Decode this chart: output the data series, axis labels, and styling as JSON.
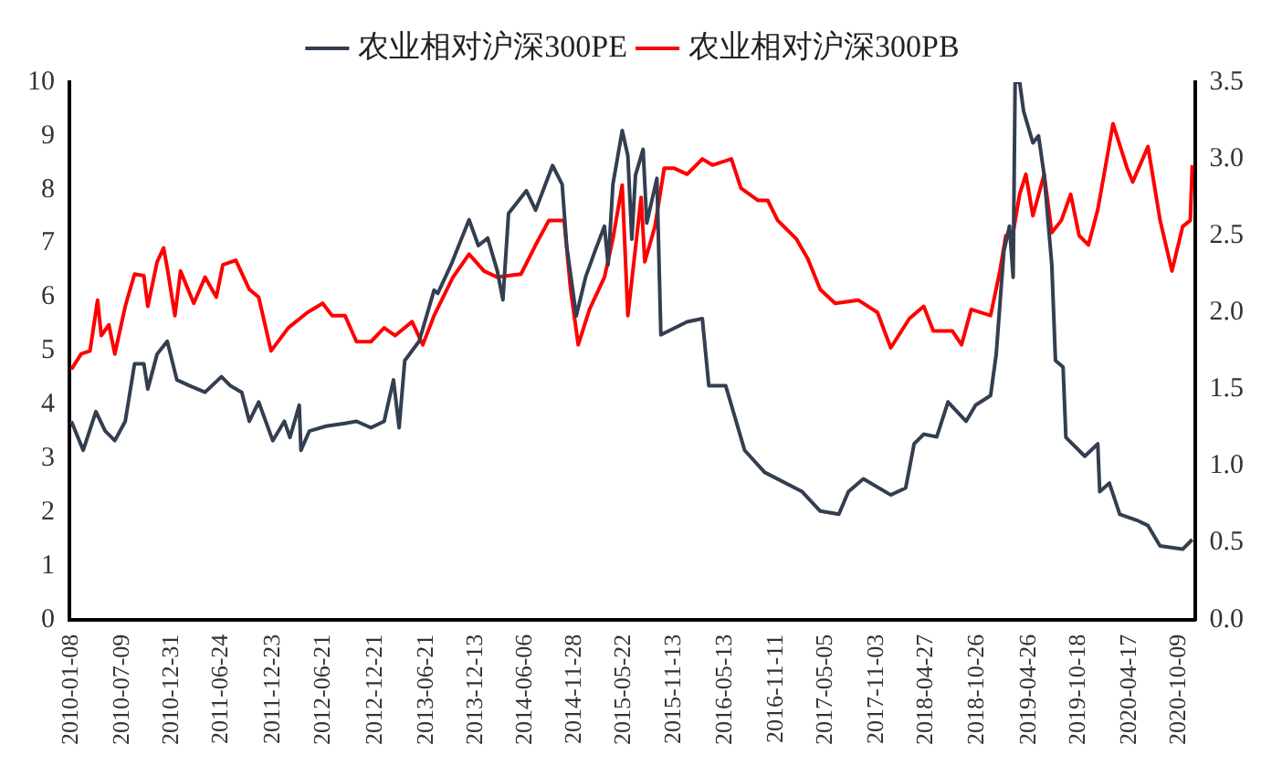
{
  "chart_data": {
    "type": "line",
    "xlim": [
      "2010-01-01",
      "2020-12-04"
    ],
    "xticks": [
      "2010-01-08",
      "2010-07-09",
      "2010-12-31",
      "2011-06-24",
      "2011-12-23",
      "2012-06-21",
      "2012-12-21",
      "2013-06-21",
      "2013-12-13",
      "2014-06-06",
      "2014-11-28",
      "2015-05-22",
      "2015-11-13",
      "2016-05-13",
      "2016-11-11",
      "2017-05-05",
      "2017-11-03",
      "2018-04-27",
      "2018-10-26",
      "2019-04-26",
      "2019-10-18",
      "2020-04-17",
      "2020-10-09"
    ],
    "ylim": [
      0,
      10
    ],
    "yticks": [
      0,
      1,
      2,
      3,
      4,
      5,
      6,
      7,
      8,
      9,
      10
    ],
    "y2lim": [
      0,
      3.5
    ],
    "y2ticks": [
      {
        "value": 0,
        "label": "0.0"
      },
      0.5,
      {
        "value": 1,
        "label": "1.0"
      },
      1.5,
      {
        "value": 2,
        "label": "2.0"
      },
      2.5,
      {
        "value": 3,
        "label": "3.0"
      },
      3.5
    ],
    "grid": false,
    "legend": "top",
    "line_style": "solid",
    "marker": "none",
    "series": [
      {
        "name": "农业相对沪深300PE",
        "color": "#333f50",
        "x": [
          "2010-01-08",
          "2010-02-19",
          "2010-04-05",
          "2010-05-08",
          "2010-06-11",
          "2010-07-18",
          "2010-08-20",
          "2010-09-22",
          "2010-10-06",
          "2010-11-08",
          "2010-12-14",
          "2011-01-17",
          "2011-03-04",
          "2011-04-27",
          "2011-06-24",
          "2011-07-26",
          "2011-09-04",
          "2011-10-01",
          "2011-11-03",
          "2011-12-23",
          "2012-02-02",
          "2012-02-22",
          "2012-03-26",
          "2012-04-01",
          "2012-05-01",
          "2012-06-30",
          "2012-09-04",
          "2012-10-15",
          "2012-12-05",
          "2013-01-21",
          "2013-02-23",
          "2013-03-15",
          "2013-04-04",
          "2013-05-25",
          "2013-07-17",
          "2013-07-30",
          "2013-09-15",
          "2013-11-18",
          "2013-12-21",
          "2014-01-23",
          "2014-02-26",
          "2014-03-18",
          "2014-04-07",
          "2014-06-09",
          "2014-07-12",
          "2014-09-10",
          "2014-10-14",
          "2014-10-30",
          "2014-12-03",
          "2015-01-05",
          "2015-02-07",
          "2015-03-13",
          "2015-03-26",
          "2015-04-12",
          "2015-05-15",
          "2015-06-04",
          "2015-06-18",
          "2015-07-01",
          "2015-07-28",
          "2015-08-10",
          "2015-09-15",
          "2015-09-29",
          "2015-12-31",
          "2016-02-23",
          "2016-03-17",
          "2016-05-16",
          "2016-07-22",
          "2016-10-01",
          "2017-02-11",
          "2017-04-16",
          "2017-06-21",
          "2017-07-25",
          "2017-09-16",
          "2017-12-22",
          "2018-02-13",
          "2018-03-15",
          "2018-04-18",
          "2018-06-03",
          "2018-07-13",
          "2018-09-15",
          "2018-10-19",
          "2018-12-11",
          "2018-12-31",
          "2019-01-27",
          "2019-02-16",
          "2019-03-01",
          "2019-03-08",
          "2019-03-24",
          "2019-04-07",
          "2019-05-10",
          "2019-05-30",
          "2019-06-19",
          "2019-07-16",
          "2019-07-29",
          "2019-08-25",
          "2019-09-04",
          "2019-11-10",
          "2019-12-26",
          "2020-01-02",
          "2020-02-05",
          "2020-03-13",
          "2020-05-12",
          "2020-06-21",
          "2020-08-03",
          "2020-10-22",
          "2020-11-25"
        ],
        "values": [
          3.69,
          3.15,
          3.87,
          3.51,
          3.33,
          3.69,
          4.76,
          4.76,
          4.29,
          4.94,
          5.18,
          4.46,
          4.35,
          4.23,
          4.52,
          4.35,
          4.23,
          3.69,
          4.05,
          3.33,
          3.69,
          3.39,
          3.99,
          3.15,
          3.51,
          3.6,
          3.65,
          3.69,
          3.57,
          3.69,
          4.46,
          3.57,
          4.82,
          5.18,
          6.13,
          6.07,
          6.6,
          7.44,
          6.96,
          7.1,
          6.49,
          5.95,
          7.56,
          7.98,
          7.62,
          8.45,
          8.1,
          6.96,
          5.65,
          6.37,
          6.85,
          7.32,
          6.6,
          8.1,
          9.1,
          8.63,
          7.08,
          8.27,
          8.75,
          7.38,
          8.21,
          5.3,
          5.54,
          5.6,
          4.35,
          4.35,
          3.15,
          2.74,
          2.38,
          2.02,
          1.96,
          2.38,
          2.62,
          2.32,
          2.45,
          3.27,
          3.45,
          3.4,
          4.05,
          3.69,
          3.99,
          4.17,
          4.94,
          6.85,
          7.32,
          6.37,
          10,
          10,
          9.46,
          8.87,
          9.0,
          8.27,
          6.6,
          4.82,
          4.7,
          3.39,
          3.04,
          3.27,
          2.38,
          2.54,
          1.96,
          1.85,
          1.75,
          1.37,
          1.31,
          1.49
        ]
      },
      {
        "name": "农业相对沪深300PB",
        "color": "#ff0000",
        "axis": "y2",
        "x": [
          "2010-01-08",
          "2010-02-12",
          "2010-03-15",
          "2010-04-11",
          "2010-04-24",
          "2010-05-21",
          "2010-06-11",
          "2010-07-18",
          "2010-08-20",
          "2010-09-22",
          "2010-10-06",
          "2010-11-08",
          "2010-12-01",
          "2010-12-14",
          "2011-01-10",
          "2011-01-30",
          "2011-03-18",
          "2011-04-27",
          "2011-06-06",
          "2011-06-29",
          "2011-08-14",
          "2011-10-01",
          "2011-11-03",
          "2011-12-17",
          "2012-02-16",
          "2012-04-24",
          "2012-06-17",
          "2012-07-20",
          "2012-09-04",
          "2012-10-15",
          "2012-12-05",
          "2013-01-21",
          "2013-03-01",
          "2013-04-30",
          "2013-06-07",
          "2013-07-17",
          "2013-09-22",
          "2013-11-18",
          "2014-01-10",
          "2014-02-26",
          "2014-05-21",
          "2014-07-12",
          "2014-08-28",
          "2014-10-21",
          "2014-11-13",
          "2014-12-10",
          "2015-01-19",
          "2015-03-13",
          "2015-04-12",
          "2015-05-15",
          "2015-06-04",
          "2015-07-21",
          "2015-08-03",
          "2015-09-08",
          "2015-10-11",
          "2015-11-14",
          "2015-12-31",
          "2016-02-23",
          "2016-03-30",
          "2016-06-05",
          "2016-07-09",
          "2016-09-08",
          "2016-10-12",
          "2016-11-16",
          "2017-01-21",
          "2017-03-03",
          "2017-04-16",
          "2017-06-08",
          "2017-08-30",
          "2017-11-05",
          "2017-12-22",
          "2018-02-26",
          "2018-04-18",
          "2018-05-22",
          "2018-07-28",
          "2018-08-30",
          "2018-10-03",
          "2018-12-11",
          "2019-01-13",
          "2019-02-03",
          "2019-03-01",
          "2019-03-24",
          "2019-04-15",
          "2019-05-10",
          "2019-06-19",
          "2019-07-16",
          "2019-08-19",
          "2019-09-21",
          "2019-10-21",
          "2019-11-23",
          "2019-12-26",
          "2020-01-29",
          "2020-02-18",
          "2020-04-08",
          "2020-04-28",
          "2020-06-21",
          "2020-08-03",
          "2020-09-14",
          "2020-10-22",
          "2020-11-18",
          "2020-11-25"
        ],
        "values": [
          1.63,
          1.73,
          1.75,
          2.08,
          1.85,
          1.92,
          1.73,
          2.04,
          2.25,
          2.24,
          2.04,
          2.33,
          2.42,
          2.29,
          1.98,
          2.27,
          2.06,
          2.23,
          2.1,
          2.31,
          2.34,
          2.15,
          2.1,
          1.75,
          1.9,
          2.0,
          2.06,
          1.98,
          1.98,
          1.81,
          1.81,
          1.9,
          1.85,
          1.94,
          1.79,
          1.98,
          2.23,
          2.38,
          2.27,
          2.23,
          2.25,
          2.44,
          2.6,
          2.6,
          2.15,
          1.79,
          2.02,
          2.23,
          2.48,
          2.83,
          1.98,
          2.75,
          2.33,
          2.56,
          2.94,
          2.94,
          2.9,
          3.0,
          2.96,
          3.0,
          2.81,
          2.73,
          2.73,
          2.6,
          2.48,
          2.35,
          2.15,
          2.06,
          2.08,
          2.0,
          1.77,
          1.96,
          2.04,
          1.88,
          1.88,
          1.79,
          2.02,
          1.98,
          2.27,
          2.5,
          2.52,
          2.77,
          2.9,
          2.63,
          2.9,
          2.52,
          2.6,
          2.77,
          2.5,
          2.44,
          2.67,
          3.02,
          3.23,
          2.94,
          2.85,
          3.08,
          2.6,
          2.27,
          2.56,
          2.6,
          2.96
        ]
      }
    ]
  }
}
